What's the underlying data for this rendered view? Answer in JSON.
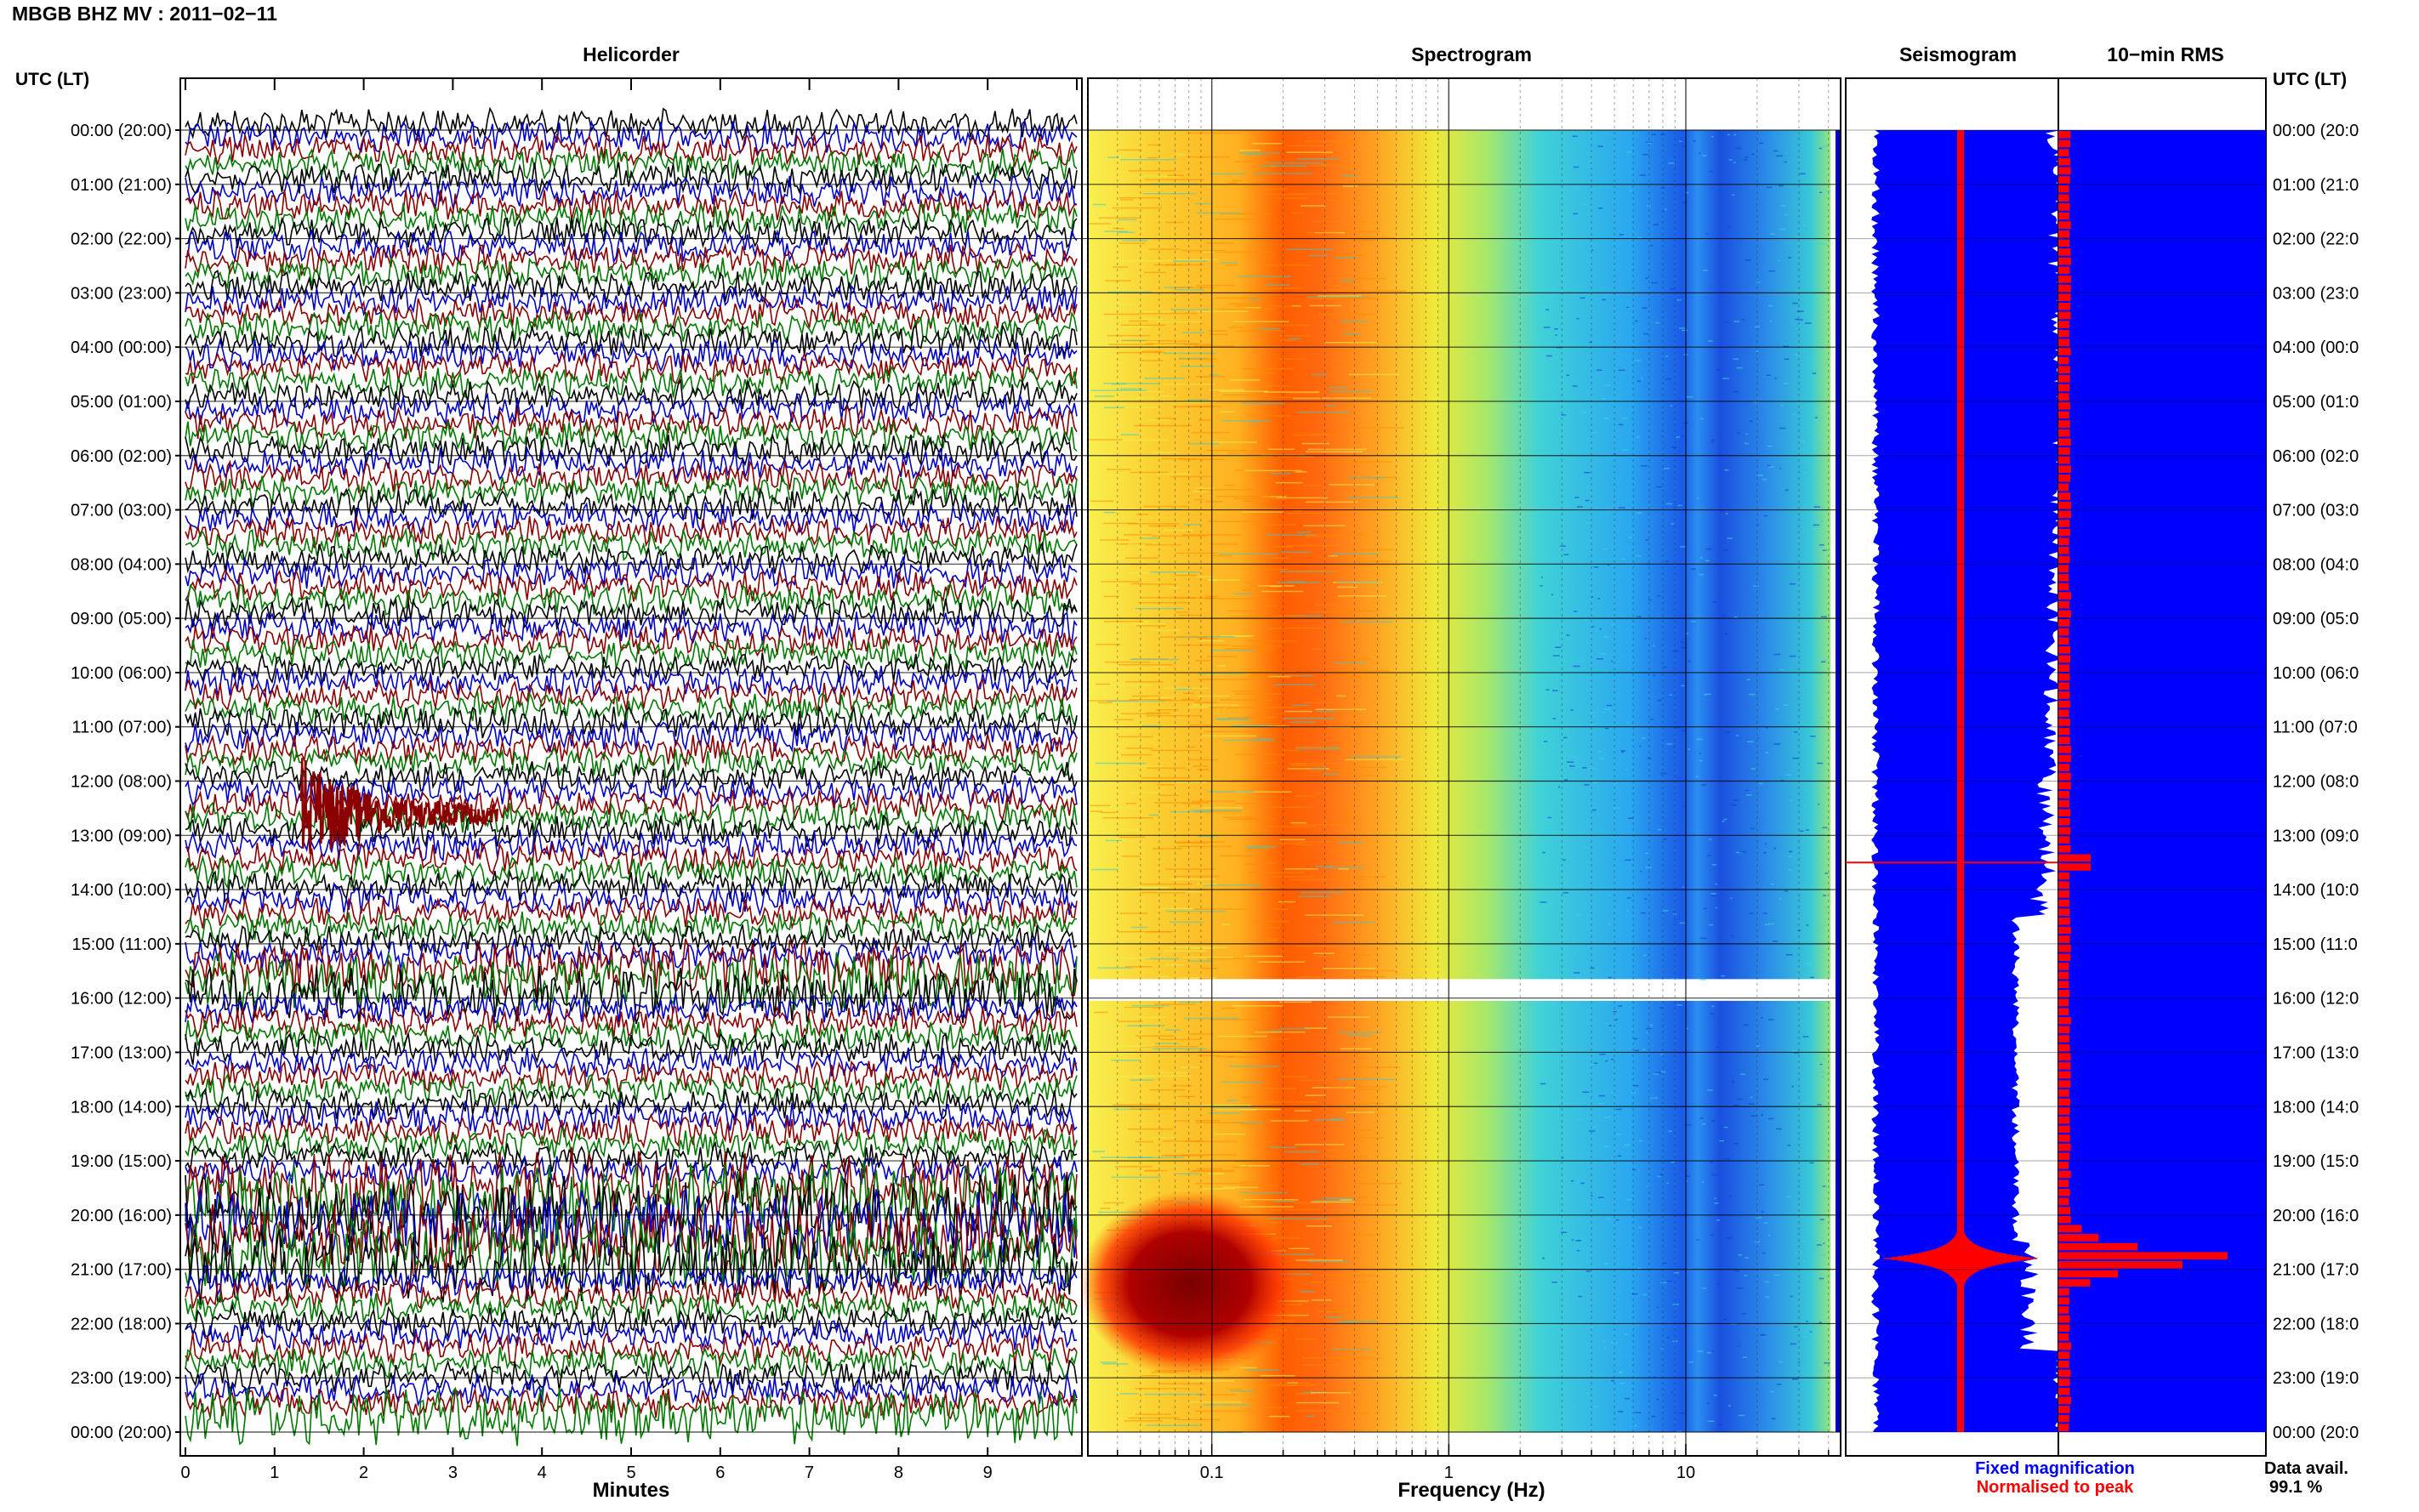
{
  "header": {
    "title": "MBGB BHZ MV : 2011−02−11",
    "utc_label_left": "UTC (LT)",
    "utc_label_right": "UTC (LT)"
  },
  "panels": {
    "helicorder": "Helicorder",
    "spectrogram": "Spectrogram",
    "seismogram": "Seismogram",
    "rms": "10−min RMS"
  },
  "time_labels": [
    "00:00 (20:00)",
    "01:00 (21:00)",
    "02:00 (22:00)",
    "03:00 (23:00)",
    "04:00 (00:00)",
    "05:00 (01:00)",
    "06:00 (02:00)",
    "07:00 (03:00)",
    "08:00 (04:00)",
    "09:00 (05:00)",
    "10:00 (06:00)",
    "11:00 (07:00)",
    "12:00 (08:00)",
    "13:00 (09:00)",
    "14:00 (10:00)",
    "15:00 (11:00)",
    "16:00 (12:00)",
    "17:00 (13:00)",
    "18:00 (14:00)",
    "19:00 (15:00)",
    "20:00 (16:00)",
    "21:00 (17:00)",
    "22:00 (18:00)",
    "23:00 (19:00)",
    "00:00 (20:00)"
  ],
  "time_labels_right": [
    "00:00 (20:0",
    "01:00 (21:0",
    "02:00 (22:0",
    "03:00 (23:0",
    "04:00 (00:0",
    "05:00 (01:0",
    "06:00 (02:0",
    "07:00 (03:0",
    "08:00 (04:0",
    "09:00 (05:0",
    "10:00 (06:0",
    "11:00 (07:0",
    "12:00 (08:0",
    "13:00 (09:0",
    "14:00 (10:0",
    "15:00 (11:0",
    "16:00 (12:0",
    "17:00 (13:0",
    "18:00 (14:0",
    "19:00 (15:0",
    "20:00 (16:0",
    "21:00 (17:0",
    "22:00 (18:0",
    "23:00 (19:0",
    "00:00 (20:0"
  ],
  "legend": {
    "fixed": "Fixed magnification",
    "normalised": "Normalised to peak"
  },
  "data_avail": {
    "label": "Data avail.",
    "value": "99.1 %"
  },
  "colors": {
    "trace_black": "#000000",
    "trace_blue": "#0000c8",
    "trace_red": "#8b0000",
    "trace_green": "#007a00",
    "seis_fixed": "#0000ff",
    "seis_norm": "#ff0000"
  },
  "chart_data": [
    {
      "type": "line",
      "panel": "helicorder",
      "xlabel": "Minutes",
      "x_ticks": [
        "0",
        "1",
        "2",
        "3",
        "4",
        "5",
        "6",
        "7",
        "8",
        "9"
      ],
      "xlim": [
        0,
        10
      ],
      "ylim_hours": [
        0,
        24
      ],
      "events": [
        {
          "hour": 12.6,
          "minute": 1.3,
          "desc": "local earthquake"
        },
        {
          "hour": 20.8,
          "minute": 0,
          "desc": "large regional event"
        }
      ]
    },
    {
      "type": "heatmap",
      "panel": "spectrogram",
      "xlabel": "Frequency (Hz)",
      "x_scale": "log",
      "xlim": [
        0.03,
        45
      ],
      "x_ticks": [
        "0.1",
        "1",
        "10"
      ],
      "gap_hours": [
        15.65,
        16.05
      ]
    },
    {
      "type": "line",
      "panel": "seismogram",
      "series": [
        {
          "name": "Fixed magnification"
        },
        {
          "name": "Normalised to peak"
        }
      ],
      "peak_hour": 20.8
    },
    {
      "type": "bar",
      "panel": "rms",
      "bin_minutes": 10,
      "peak_hour": 20.8,
      "secondary_peak_hour": 13.5
    }
  ]
}
